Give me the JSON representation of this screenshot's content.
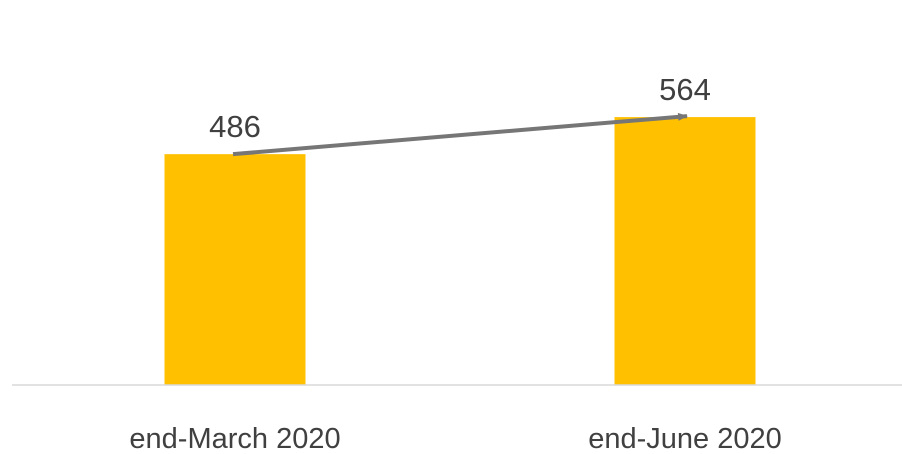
{
  "chart_data": {
    "type": "bar",
    "categories": [
      "end-March 2020",
      "end-June 2020"
    ],
    "values": [
      486,
      564
    ],
    "data_labels": [
      "486",
      "564"
    ],
    "ylim": [
      0,
      700
    ],
    "grid": false,
    "legend": "none",
    "bar_color": "#FFC000",
    "axis_color": "#D9D9D9",
    "text_color": "#404040",
    "arrow": {
      "from_category": "end-March 2020",
      "to_category": "end-June 2020",
      "color": "#767676"
    }
  }
}
